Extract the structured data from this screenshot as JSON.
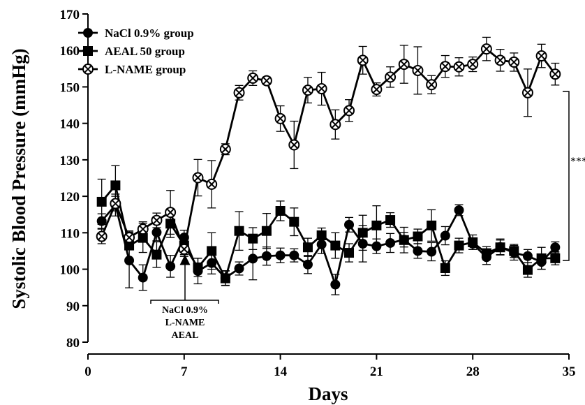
{
  "chart_data": {
    "type": "line",
    "xlabel": "Days",
    "ylabel": "Systolic Blood Pressure (mmHg)",
    "xlim": [
      0,
      35
    ],
    "ylim": [
      80,
      170
    ],
    "x_ticks": [
      "0",
      "7",
      "14",
      "21",
      "28",
      "35"
    ],
    "y_ticks": [
      "80",
      "90",
      "100",
      "110",
      "120",
      "130",
      "140",
      "150",
      "160",
      "170"
    ],
    "legend_position": "top-left",
    "grid": false,
    "series": [
      {
        "name": "NaCl 0.9% group",
        "marker": "circle",
        "x": [
          1,
          2,
          3,
          4,
          5,
          6,
          7,
          8,
          9,
          10,
          11,
          12,
          13,
          14,
          15,
          16,
          17,
          18,
          19,
          20,
          21,
          22,
          23,
          24,
          25,
          26,
          27,
          28,
          29,
          30,
          31,
          32,
          33,
          34
        ],
        "y": [
          113.2,
          117.6,
          102.4,
          97.7,
          110.1,
          100.8,
          108.7,
          99.5,
          101.7,
          97.6,
          100.2,
          102.9,
          103.6,
          103.8,
          103.8,
          101.3,
          106.8,
          95.8,
          112.2,
          107.0,
          106.3,
          107.2,
          108.1,
          105.0,
          104.8,
          109.2,
          116.2,
          107.0,
          103.3,
          106.1,
          104.5,
          103.6,
          102.0,
          106.0
        ],
        "err": [
          2.0,
          3.0,
          7.5,
          3.5,
          2.3,
          3.0,
          2.0,
          3.5,
          3.0,
          2.0,
          1.8,
          5.8,
          2.5,
          2.0,
          1.8,
          2.5,
          2.5,
          2.8,
          2.0,
          5.0,
          2.0,
          2.6,
          2.0,
          2.0,
          2.5,
          2.5,
          1.5,
          1.6,
          2.0,
          2.2,
          2.0,
          1.8,
          2.0,
          1.5
        ]
      },
      {
        "name": "AEAL 50 group",
        "marker": "square",
        "x": [
          1,
          2,
          3,
          4,
          5,
          6,
          7,
          8,
          9,
          10,
          11,
          12,
          13,
          14,
          15,
          16,
          17,
          18,
          19,
          20,
          21,
          22,
          23,
          24,
          25,
          26,
          27,
          28,
          29,
          30,
          31,
          32,
          33,
          34
        ],
        "y": [
          118.5,
          123.0,
          106.5,
          108.6,
          104.0,
          112.5,
          106.5,
          100.5,
          105.0,
          97.5,
          110.5,
          108.4,
          110.5,
          116.0,
          113.0,
          106.0,
          109.3,
          106.5,
          104.5,
          110.0,
          112.0,
          113.5,
          108.0,
          109.0,
          112.0,
          100.3,
          106.5,
          107.4,
          104.4,
          106.0,
          105.0,
          99.8,
          103.0,
          103.0
        ],
        "err": [
          6.2,
          5.4,
          4.0,
          4.0,
          3.5,
          3.8,
          2.5,
          2.5,
          5.0,
          2.0,
          5.3,
          3.0,
          4.8,
          2.7,
          3.8,
          2.5,
          2.0,
          3.5,
          2.5,
          4.8,
          5.4,
          2.0,
          3.5,
          2.0,
          4.3,
          2.0,
          2.0,
          2.0,
          1.8,
          2.0,
          1.8,
          2.0,
          3.0,
          1.8
        ]
      },
      {
        "name": "L-NAME group",
        "marker": "circle-x",
        "x": [
          1,
          2,
          3,
          4,
          5,
          6,
          7,
          8,
          9,
          10,
          11,
          12,
          13,
          14,
          15,
          16,
          17,
          18,
          19,
          20,
          21,
          22,
          23,
          24,
          25,
          26,
          27,
          28,
          29,
          30,
          31,
          32,
          33,
          34
        ],
        "y": [
          109.0,
          118.0,
          108.7,
          111.0,
          113.4,
          115.6,
          105.5,
          125.1,
          123.3,
          132.9,
          148.4,
          152.4,
          151.7,
          141.3,
          134.1,
          149.1,
          149.5,
          139.7,
          143.5,
          157.3,
          149.3,
          152.7,
          156.2,
          154.5,
          150.6,
          155.6,
          155.5,
          156.2,
          160.4,
          157.3,
          156.8,
          148.4,
          158.5,
          153.5
        ],
        "err": [
          2.0,
          2.0,
          1.5,
          2.0,
          2.0,
          6.0,
          2.0,
          5.0,
          6.5,
          1.5,
          2.0,
          2.0,
          1.0,
          3.5,
          6.5,
          3.5,
          4.5,
          4.0,
          3.0,
          3.8,
          1.8,
          2.8,
          5.2,
          6.5,
          2.5,
          3.0,
          2.5,
          2.0,
          3.2,
          3.0,
          2.5,
          6.5,
          3.2,
          3.0
        ]
      }
    ],
    "annotations": {
      "treatment_lines": [
        "NaCl 0.9%",
        "L-NAME",
        "AEAL"
      ],
      "significance": "***"
    }
  }
}
